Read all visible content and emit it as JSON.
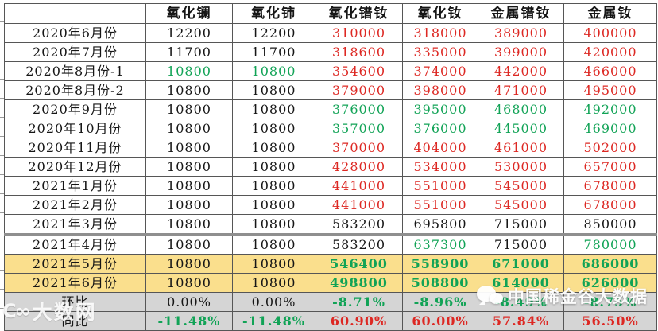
{
  "header": {
    "col0": "",
    "columns": [
      "氧化镧",
      "氧化铈",
      "氧化镨钕",
      "氧化钕",
      "金属镨钕",
      "金属钕"
    ]
  },
  "rows": [
    {
      "label": "2020年6月份",
      "values": [
        "12200",
        "12200",
        "310000",
        "318000",
        "389000",
        "400000"
      ],
      "colors": [
        "k",
        "k",
        "r",
        "r",
        "r",
        "r"
      ],
      "bold": [
        false,
        false,
        false,
        false,
        false,
        false
      ],
      "bg": "white",
      "thick": false
    },
    {
      "label": "2020年7月份",
      "values": [
        "11700",
        "11700",
        "318600",
        "335000",
        "399000",
        "420000"
      ],
      "colors": [
        "k",
        "k",
        "r",
        "r",
        "r",
        "r"
      ],
      "bold": [
        false,
        false,
        false,
        false,
        false,
        false
      ],
      "bg": "white",
      "thick": false
    },
    {
      "label": "2020年8月份-1",
      "values": [
        "10800",
        "10800",
        "354600",
        "374000",
        "442000",
        "466000"
      ],
      "colors": [
        "g",
        "g",
        "r",
        "r",
        "r",
        "r"
      ],
      "bold": [
        false,
        false,
        false,
        false,
        false,
        false
      ],
      "bg": "white",
      "thick": false
    },
    {
      "label": "2020年8月份-2",
      "values": [
        "10800",
        "10800",
        "379000",
        "398000",
        "471000",
        "495000"
      ],
      "colors": [
        "k",
        "k",
        "r",
        "r",
        "r",
        "r"
      ],
      "bold": [
        false,
        false,
        false,
        false,
        false,
        false
      ],
      "bg": "white",
      "thick": false
    },
    {
      "label": "2020年9月份",
      "values": [
        "10800",
        "10800",
        "376000",
        "395000",
        "468000",
        "492000"
      ],
      "colors": [
        "k",
        "k",
        "g",
        "g",
        "g",
        "g"
      ],
      "bold": [
        false,
        false,
        false,
        false,
        false,
        false
      ],
      "bg": "white",
      "thick": false
    },
    {
      "label": "2020年10月份",
      "values": [
        "10800",
        "10800",
        "357000",
        "376000",
        "445000",
        "469000"
      ],
      "colors": [
        "k",
        "k",
        "g",
        "g",
        "g",
        "g"
      ],
      "bold": [
        false,
        false,
        false,
        false,
        false,
        false
      ],
      "bg": "white",
      "thick": false
    },
    {
      "label": "2020年11月份",
      "values": [
        "10800",
        "10800",
        "370000",
        "404000",
        "461000",
        "502000"
      ],
      "colors": [
        "k",
        "k",
        "r",
        "r",
        "r",
        "r"
      ],
      "bold": [
        false,
        false,
        false,
        false,
        false,
        false
      ],
      "bg": "white",
      "thick": false
    },
    {
      "label": "2020年12月份",
      "values": [
        "10800",
        "10800",
        "428000",
        "534000",
        "530000",
        "657000"
      ],
      "colors": [
        "k",
        "k",
        "r",
        "r",
        "r",
        "r"
      ],
      "bold": [
        false,
        false,
        false,
        false,
        false,
        false
      ],
      "bg": "white",
      "thick": false
    },
    {
      "label": "2021年1月份",
      "values": [
        "10800",
        "10800",
        "441000",
        "551000",
        "545000",
        "678000"
      ],
      "colors": [
        "k",
        "k",
        "r",
        "r",
        "r",
        "r"
      ],
      "bold": [
        false,
        false,
        false,
        false,
        false,
        false
      ],
      "bg": "white",
      "thick": false
    },
    {
      "label": "2021年2月份",
      "values": [
        "10800",
        "10800",
        "441000",
        "551000",
        "545000",
        "678000"
      ],
      "colors": [
        "k",
        "k",
        "r",
        "r",
        "r",
        "r"
      ],
      "bold": [
        false,
        false,
        false,
        false,
        false,
        false
      ],
      "bg": "white",
      "thick": false
    },
    {
      "label": "2021年3月份",
      "values": [
        "10800",
        "10800",
        "583200",
        "695800",
        "715000",
        "850000"
      ],
      "colors": [
        "k",
        "k",
        "k",
        "k",
        "k",
        "k"
      ],
      "bold": [
        false,
        false,
        false,
        false,
        false,
        false
      ],
      "bg": "white",
      "thick": true
    },
    {
      "label": "2021年4月份",
      "values": [
        "10800",
        "10800",
        "583200",
        "637300",
        "715000",
        "780000"
      ],
      "colors": [
        "k",
        "k",
        "k",
        "g",
        "k",
        "g"
      ],
      "bold": [
        false,
        false,
        false,
        false,
        false,
        false
      ],
      "bg": "white",
      "thick": false
    },
    {
      "label": "2021年5月份",
      "values": [
        "10800",
        "10800",
        "546400",
        "558900",
        "671000",
        "686000"
      ],
      "colors": [
        "k",
        "k",
        "g",
        "g",
        "g",
        "g"
      ],
      "bold": [
        false,
        false,
        true,
        true,
        true,
        true
      ],
      "bg": "yellow",
      "thick": false
    },
    {
      "label": "2021年6月份",
      "values": [
        "10800",
        "10800",
        "498800",
        "508800",
        "614000",
        "626000"
      ],
      "colors": [
        "k",
        "k",
        "g",
        "g",
        "g",
        "g"
      ],
      "bold": [
        false,
        false,
        true,
        true,
        true,
        true
      ],
      "bg": "yellow",
      "thick": false
    },
    {
      "label": "环比",
      "values": [
        "0.00%",
        "0.00%",
        "-8.71%",
        "-8.96%",
        "-8.49%",
        "-8.75%"
      ],
      "colors": [
        "k",
        "k",
        "g",
        "g",
        "g",
        "g"
      ],
      "bold": [
        false,
        false,
        true,
        true,
        true,
        true
      ],
      "bg": "gray",
      "thick": false
    },
    {
      "label": "同比",
      "values": [
        "-11.48%",
        "-11.48%",
        "60.90%",
        "60.00%",
        "57.84%",
        "56.50%"
      ],
      "colors": [
        "g",
        "g",
        "r",
        "r",
        "r",
        "r"
      ],
      "bold": [
        true,
        true,
        true,
        true,
        true,
        true
      ],
      "bg": "gray",
      "thick": false
    }
  ],
  "colors": {
    "red": "#dd2823",
    "green": "#11a356",
    "yellow_row_bg": "#fadf8d",
    "gray_row_bg": "#d5d5d5"
  },
  "watermarks": {
    "wechat_text": "中国稀金谷大数据",
    "corner_logo": "C∞",
    "corner_text": "大数网"
  }
}
